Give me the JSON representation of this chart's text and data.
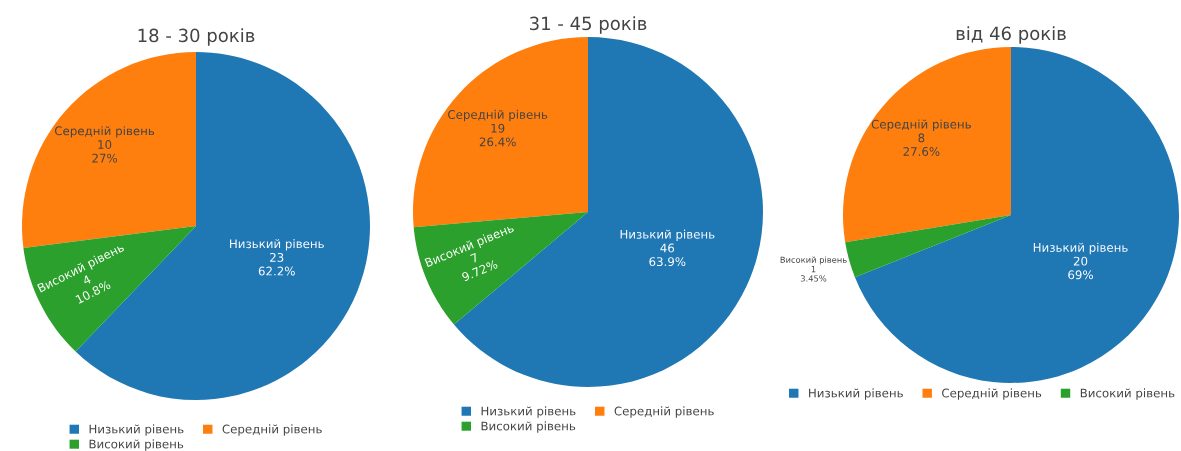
{
  "chart_data": [
    {
      "type": "pie",
      "title": "18 - 30 років",
      "categories": [
        "Низький рівень",
        "Середній рівень",
        "Високий рівень"
      ],
      "values": [
        23,
        10,
        4
      ],
      "colors": [
        "#1f77b4",
        "#ff7f0e",
        "#2ca02c"
      ],
      "value_labels": [
        "23\n62.2%",
        "10\n27%",
        "4\n10.8%"
      ],
      "legend": "bottom"
    },
    {
      "type": "pie",
      "title": "31 - 45 років",
      "categories": [
        "Низький рівень",
        "Середній рівень",
        "Високий рівень"
      ],
      "values": [
        46,
        19,
        7
      ],
      "colors": [
        "#1f77b4",
        "#ff7f0e",
        "#2ca02c"
      ],
      "value_labels": [
        "46\n63.9%",
        "19\n26.4%",
        "7\n9.72%"
      ],
      "legend": "bottom"
    },
    {
      "type": "pie",
      "title": "від 46 років",
      "categories": [
        "Низький рівень",
        "Середній рівень",
        "Високий рівень"
      ],
      "values": [
        20,
        8,
        1
      ],
      "colors": [
        "#1f77b4",
        "#ff7f0e",
        "#2ca02c"
      ],
      "value_labels": [
        "20\n69%",
        "8\n27.6%",
        "1\n3.45%"
      ],
      "legend": "bottom"
    }
  ]
}
